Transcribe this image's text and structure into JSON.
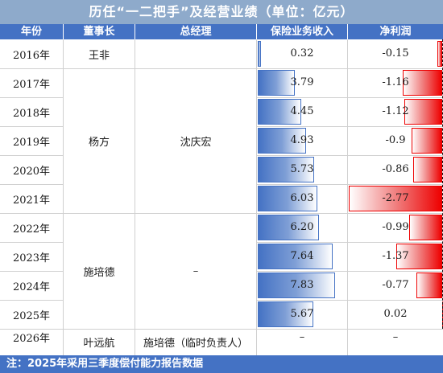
{
  "title": "历任“一二把手”及经营业绩（单位：亿元）",
  "headers": {
    "year": "年份",
    "chairman": "董事长",
    "gm": "总经理",
    "revenue": "保险业务收入",
    "profit": "净利润"
  },
  "rows": [
    {
      "year": "2016年",
      "revenue": 0.32,
      "revenue_text": "0.32",
      "profit": -0.15,
      "profit_text": "-0.15"
    },
    {
      "year": "2017年",
      "revenue": 3.79,
      "revenue_text": "3.79",
      "profit": -1.16,
      "profit_text": "-1.16"
    },
    {
      "year": "2018年",
      "revenue": 4.45,
      "revenue_text": "4.45",
      "profit": -1.12,
      "profit_text": "-1.12"
    },
    {
      "year": "2019年",
      "revenue": 4.93,
      "revenue_text": "4.93",
      "profit": -0.9,
      "profit_text": "-0.9"
    },
    {
      "year": "2020年",
      "revenue": 5.73,
      "revenue_text": "5.73",
      "profit": -0.86,
      "profit_text": "-0.86"
    },
    {
      "year": "2021年",
      "revenue": 6.03,
      "revenue_text": "6.03",
      "profit": -2.77,
      "profit_text": "-2.77"
    },
    {
      "year": "2022年",
      "revenue": 6.2,
      "revenue_text": "6.20",
      "profit": -0.99,
      "profit_text": "-0.99"
    },
    {
      "year": "2023年",
      "revenue": 7.64,
      "revenue_text": "7.64",
      "profit": -1.37,
      "profit_text": "-1.37"
    },
    {
      "year": "2024年",
      "revenue": 7.83,
      "revenue_text": "7.83",
      "profit": -0.77,
      "profit_text": "-0.77"
    },
    {
      "year": "2025年",
      "revenue": 5.67,
      "revenue_text": "5.67",
      "profit": 0.02,
      "profit_text": "0.02"
    },
    {
      "year": "2026年",
      "revenue": null,
      "revenue_text": "–",
      "profit": null,
      "profit_text": "–"
    }
  ],
  "chairmen": [
    {
      "name": "王非",
      "rows": [
        0
      ]
    },
    {
      "name": "杨方",
      "rows": [
        1,
        2,
        3,
        4,
        5
      ]
    },
    {
      "name": "施培德",
      "rows": [
        6,
        7,
        8,
        9
      ]
    },
    {
      "name": "叶远航",
      "rows": [
        10
      ]
    }
  ],
  "gms": [
    {
      "name": "",
      "rows": [
        0
      ]
    },
    {
      "name": "沈庆宏",
      "rows": [
        1,
        2,
        3,
        4,
        5
      ]
    },
    {
      "name": "–",
      "rows": [
        6,
        7,
        8,
        9
      ]
    },
    {
      "name": "施培德（临时负责人）",
      "rows": [
        10
      ]
    }
  ],
  "footer": "注：2025年采用三季度偿付能力报告数据",
  "colors": {
    "title_bg": "#8eaacb",
    "header_bg": "#4472c4",
    "revenue_bar": "#4472c4",
    "profit_bar": "#ee0000"
  }
}
